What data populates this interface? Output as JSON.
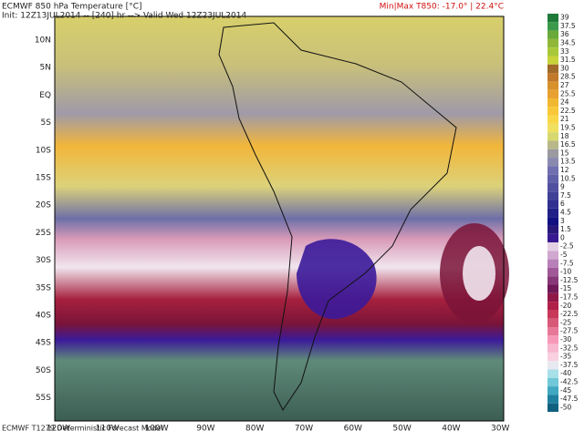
{
  "header": {
    "title": "ECMWF 850 hPa Temperature [°C]",
    "init": "Init: 12Z13JUL2014 -- [240] hr --> Valid Wed 12Z23JUL2014",
    "minmax": "Min|Max T850: -17.0° | 22.4°C"
  },
  "latitudes": [
    "10N",
    "5N",
    "EQ",
    "5S",
    "10S",
    "15S",
    "20S",
    "25S",
    "30S",
    "35S",
    "40S",
    "45S",
    "50S",
    "55S"
  ],
  "longitudes": [
    "120W",
    "110W",
    "100W",
    "90W",
    "80W",
    "70W",
    "60W",
    "50W",
    "40W",
    "30W"
  ],
  "colorbar": [
    "39",
    "37.5",
    "36",
    "34.5",
    "33",
    "31.5",
    "30",
    "28.5",
    "27",
    "25.5",
    "24",
    "22.5",
    "21",
    "19.5",
    "18",
    "16.5",
    "15",
    "13.5",
    "12",
    "10.5",
    "9",
    "7.5",
    "6",
    "4.5",
    "3",
    "1.5",
    "0",
    "-2.5",
    "-5",
    "-7.5",
    "-10",
    "-12.5",
    "-15",
    "-17.5",
    "-20",
    "-22.5",
    "-25",
    "-27.5",
    "-30",
    "-32.5",
    "-35",
    "-37.5",
    "-40",
    "-42.5",
    "-45",
    "-47.5",
    "-50"
  ],
  "footer": "ECMWF T1279 Deterministic Forecast Model"
}
